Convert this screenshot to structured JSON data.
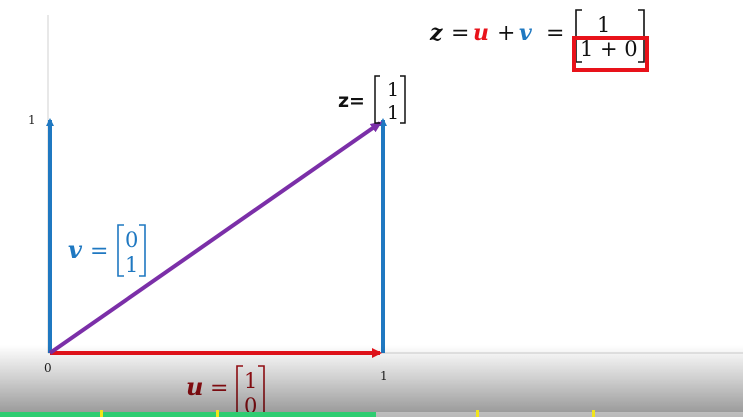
{
  "labels": {
    "z_point": "z=",
    "z_vector": [
      "1",
      "1"
    ],
    "v_name": "v",
    "v_eq": "=",
    "v_vector": [
      "0",
      "1"
    ],
    "u_name": "u",
    "u_eq": "=",
    "u_vector": [
      "1",
      "0"
    ],
    "eq_z": "z",
    "eq_equals1": "=",
    "eq_u": "u",
    "eq_plus": "+",
    "eq_v": "v",
    "eq_equals2": "=",
    "eq_top": "1",
    "eq_bottom": "1 + 0"
  },
  "axis": {
    "origin": "0",
    "x_one": "1",
    "y_one": "1"
  },
  "colors": {
    "u": "#e8121a",
    "v": "#1f78c1",
    "z": "#7b2fa8",
    "u_text": "#a50f15",
    "highlight_box": "#e8121a"
  },
  "video": {
    "progress": 0.506
  }
}
